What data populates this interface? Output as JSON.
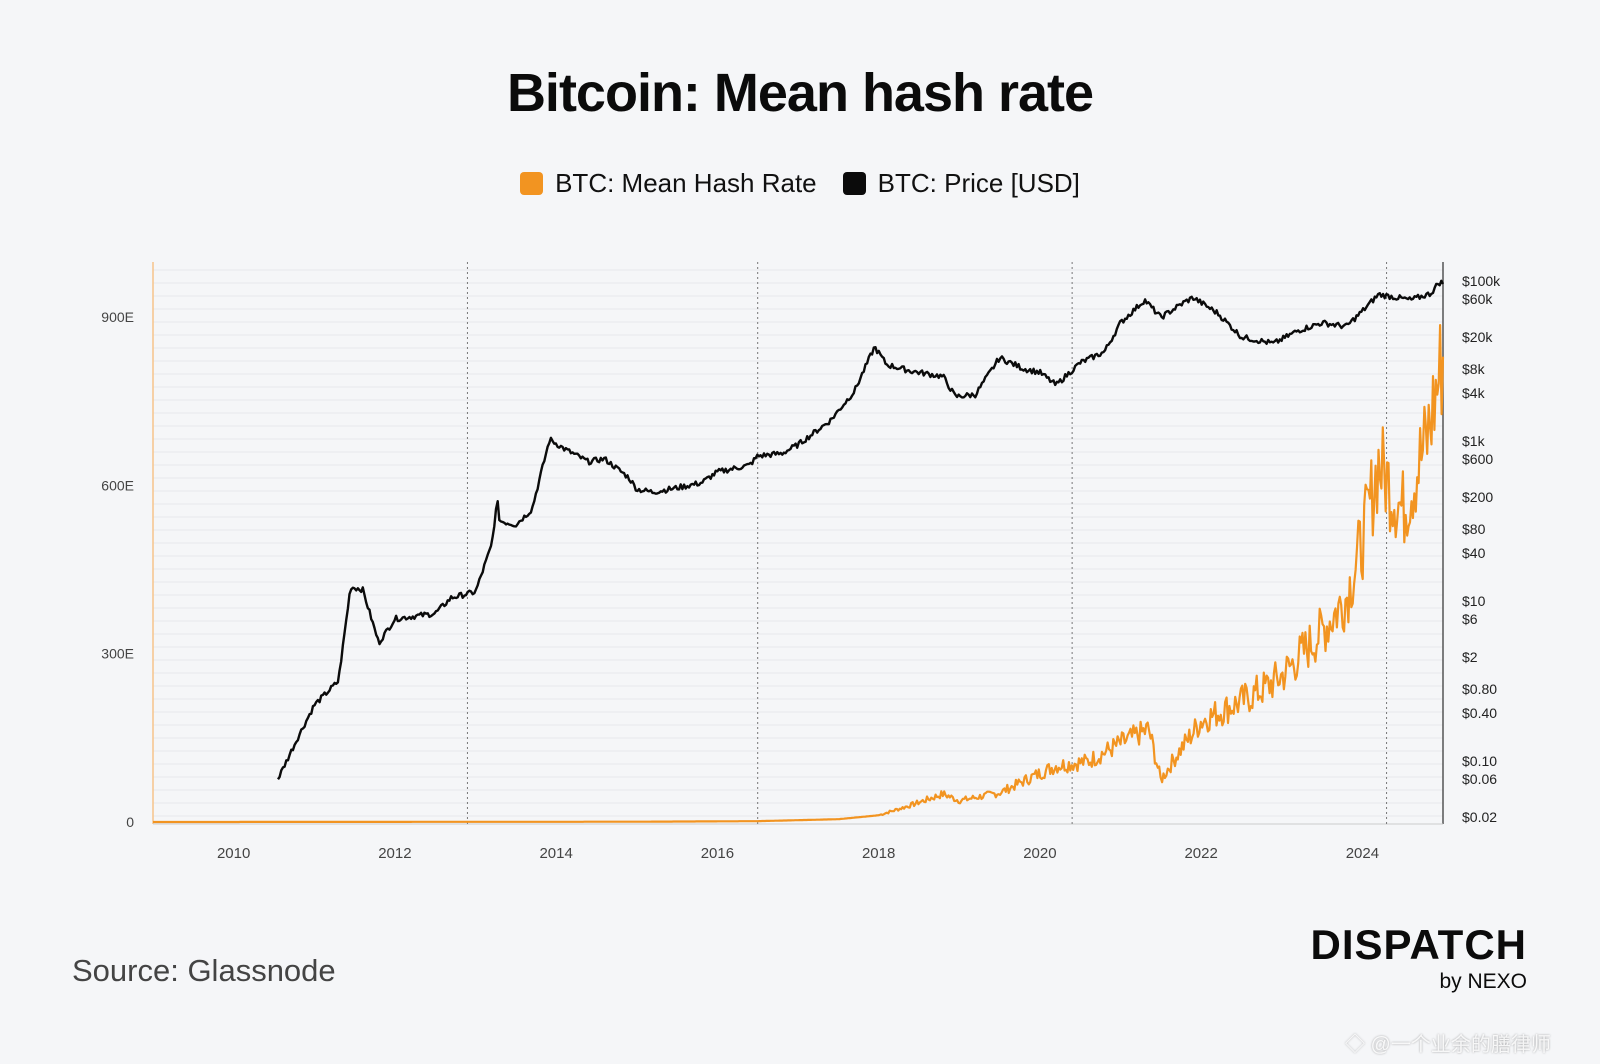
{
  "page": {
    "title": "Bitcoin: Mean hash rate",
    "source": "Source: Glassnode",
    "brand": {
      "main": "DISPATCH",
      "sub": "by NEXO"
    },
    "watermark": "◇ @一个业余的膳律师"
  },
  "legend": [
    {
      "label": "BTC: Mean Hash Rate",
      "color": "#f29421"
    },
    {
      "label": "BTC: Price [USD]",
      "color": "#0b0b0b"
    }
  ],
  "chart_data": {
    "type": "line",
    "title": "Bitcoin: Mean hash rate",
    "x_ticks": [
      "2010",
      "2012",
      "2014",
      "2016",
      "2018",
      "2020",
      "2022",
      "2024"
    ],
    "xlim": [
      2009.0,
      2025.0
    ],
    "left_axis": {
      "ticks": [
        "0",
        "300E",
        "600E",
        "900E"
      ],
      "values": [
        0,
        300,
        600,
        900
      ],
      "ylim": [
        0,
        1000
      ]
    },
    "right_axis": {
      "scale": "log",
      "ticks": [
        {
          "label": "$100k",
          "value": 100000
        },
        {
          "label": "$60k",
          "value": 60000
        },
        {
          "label": "$20k",
          "value": 20000
        },
        {
          "label": "$8k",
          "value": 8000
        },
        {
          "label": "$4k",
          "value": 4000
        },
        {
          "label": "$1k",
          "value": 1000
        },
        {
          "label": "$600",
          "value": 600
        },
        {
          "label": "$200",
          "value": 200
        },
        {
          "label": "$80",
          "value": 80
        },
        {
          "label": "$40",
          "value": 40
        },
        {
          "label": "$10",
          "value": 10
        },
        {
          "label": "$6",
          "value": 6
        },
        {
          "label": "$2",
          "value": 2
        },
        {
          "label": "$0.80",
          "value": 0.8
        },
        {
          "label": "$0.40",
          "value": 0.4
        },
        {
          "label": "$0.10",
          "value": 0.1
        },
        {
          "label": "$0.06",
          "value": 0.06
        },
        {
          "label": "$0.02",
          "value": 0.02
        }
      ]
    },
    "halvings": [
      2012.9,
      2016.5,
      2020.4,
      2024.3
    ],
    "series": [
      {
        "name": "BTC: Mean Hash Rate",
        "color": "#f29421",
        "axis": "left",
        "points": [
          [
            2009.0,
            0
          ],
          [
            2015.0,
            0.5
          ],
          [
            2016.5,
            1.5
          ],
          [
            2017.5,
            5
          ],
          [
            2018.0,
            12
          ],
          [
            2018.4,
            30
          ],
          [
            2018.8,
            50
          ],
          [
            2019.0,
            38
          ],
          [
            2019.5,
            52
          ],
          [
            2019.9,
            80
          ],
          [
            2020.2,
            100
          ],
          [
            2020.6,
            108
          ],
          [
            2021.0,
            140
          ],
          [
            2021.35,
            165
          ],
          [
            2021.5,
            75
          ],
          [
            2021.7,
            120
          ],
          [
            2022.0,
            180
          ],
          [
            2022.5,
            215
          ],
          [
            2022.8,
            240
          ],
          [
            2023.0,
            260
          ],
          [
            2023.5,
            340
          ],
          [
            2023.8,
            400
          ],
          [
            2024.0,
            500
          ],
          [
            2024.2,
            640
          ],
          [
            2024.5,
            555
          ],
          [
            2024.8,
            680
          ],
          [
            2025.0,
            830
          ]
        ]
      },
      {
        "name": "BTC: Price [USD]",
        "color": "#0b0b0b",
        "axis": "right",
        "points": [
          [
            2010.55,
            0.06
          ],
          [
            2010.8,
            0.2
          ],
          [
            2011.0,
            0.5
          ],
          [
            2011.3,
            1.0
          ],
          [
            2011.45,
            15
          ],
          [
            2011.6,
            14
          ],
          [
            2011.8,
            3
          ],
          [
            2012.0,
            6
          ],
          [
            2012.5,
            7
          ],
          [
            2012.7,
            11
          ],
          [
            2013.0,
            13
          ],
          [
            2013.2,
            50
          ],
          [
            2013.27,
            180
          ],
          [
            2013.3,
            100
          ],
          [
            2013.5,
            90
          ],
          [
            2013.7,
            140
          ],
          [
            2013.92,
            1050
          ],
          [
            2014.1,
            800
          ],
          [
            2014.4,
            550
          ],
          [
            2014.6,
            600
          ],
          [
            2014.9,
            350
          ],
          [
            2015.0,
            250
          ],
          [
            2015.2,
            230
          ],
          [
            2015.5,
            260
          ],
          [
            2015.8,
            300
          ],
          [
            2016.0,
            410
          ],
          [
            2016.4,
            500
          ],
          [
            2016.5,
            650
          ],
          [
            2016.8,
            700
          ],
          [
            2017.0,
            900
          ],
          [
            2017.4,
            1800
          ],
          [
            2017.7,
            4200
          ],
          [
            2017.95,
            15000
          ],
          [
            2018.1,
            9000
          ],
          [
            2018.4,
            7500
          ],
          [
            2018.8,
            6400
          ],
          [
            2018.95,
            3600
          ],
          [
            2019.2,
            3800
          ],
          [
            2019.5,
            11000
          ],
          [
            2019.8,
            8000
          ],
          [
            2020.0,
            7200
          ],
          [
            2020.2,
            5000
          ],
          [
            2020.5,
            9500
          ],
          [
            2020.8,
            13000
          ],
          [
            2021.0,
            30000
          ],
          [
            2021.3,
            58000
          ],
          [
            2021.5,
            35000
          ],
          [
            2021.8,
            55000
          ],
          [
            2021.9,
            62000
          ],
          [
            2022.2,
            40000
          ],
          [
            2022.5,
            20000
          ],
          [
            2022.9,
            16500
          ],
          [
            2023.2,
            24000
          ],
          [
            2023.5,
            30000
          ],
          [
            2023.8,
            27000
          ],
          [
            2024.0,
            42000
          ],
          [
            2024.2,
            68000
          ],
          [
            2024.6,
            58000
          ],
          [
            2024.85,
            70000
          ],
          [
            2024.95,
            96000
          ],
          [
            2025.0,
            95000
          ]
        ]
      }
    ]
  }
}
